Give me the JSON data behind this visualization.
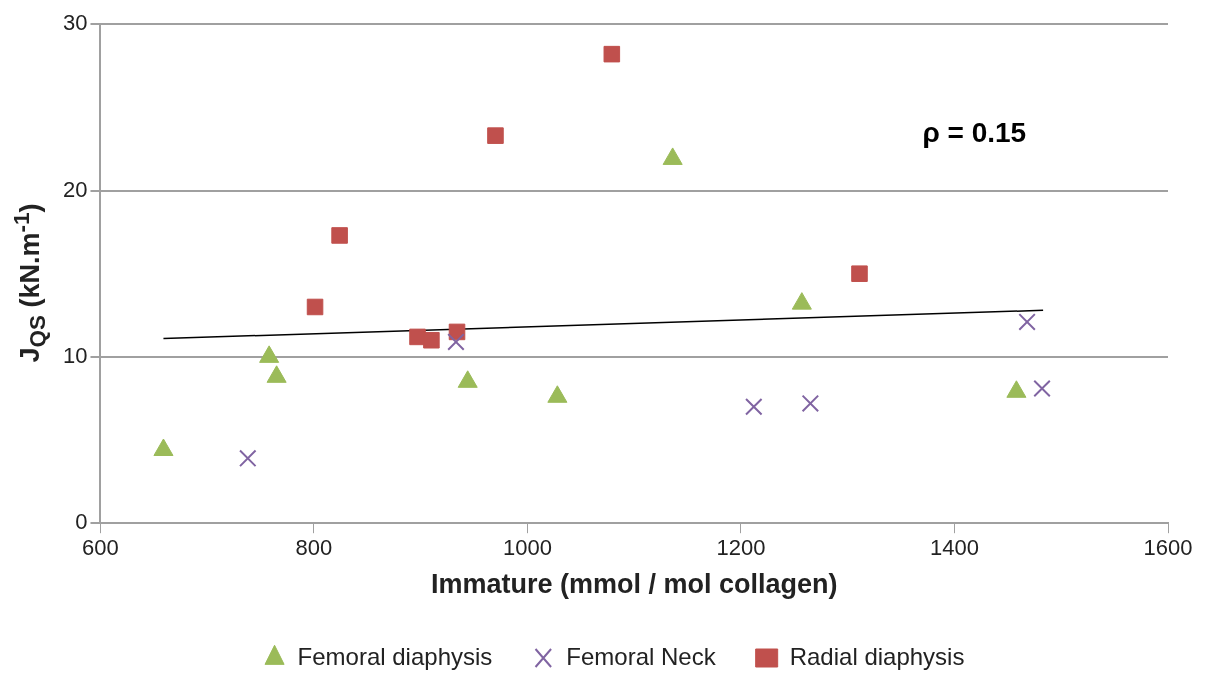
{
  "chart_data": {
    "type": "scatter",
    "xlabel": "Immature (mmol / mol collagen)",
    "ylabel": "J$_{QS}$ (kN.m$^{-1}$)",
    "xlim": [
      600,
      1600
    ],
    "xticks": [
      600,
      800,
      1000,
      1200,
      1400,
      1600
    ],
    "ylim": [
      0,
      30
    ],
    "yticks": [
      0,
      10,
      20,
      30
    ],
    "grid": "y",
    "legend": "bottom",
    "annotations": [
      "ρ = 0.15"
    ],
    "series": [
      {
        "name": "Femoral diaphysis",
        "color": "#9bbb59",
        "marker": "triangle",
        "x": [
          659,
          758,
          765,
          944,
          1028,
          1136,
          1257,
          1458
        ],
        "values": [
          4.4,
          10.0,
          8.8,
          8.5,
          7.6,
          21.9,
          13.2,
          7.9
        ]
      },
      {
        "name": "Femoral Neck",
        "color": "#8064a2",
        "marker": "cross",
        "x": [
          738,
          933,
          1212,
          1265,
          1468,
          1482
        ],
        "values": [
          3.9,
          10.9,
          7.0,
          7.2,
          12.1,
          8.1
        ]
      },
      {
        "name": "Radial diaphysis",
        "color": "#c0504d",
        "marker": "square",
        "x": [
          801,
          824,
          897,
          910,
          934,
          970,
          1079,
          1311
        ],
        "values": [
          13.0,
          17.3,
          11.2,
          11.0,
          11.5,
          23.3,
          28.2,
          15.0
        ]
      },
      {
        "type": "line",
        "color": "#000000",
        "marker": "none",
        "x": [
          659,
          1483
        ],
        "values": [
          11.1,
          12.8
        ]
      }
    ]
  }
}
